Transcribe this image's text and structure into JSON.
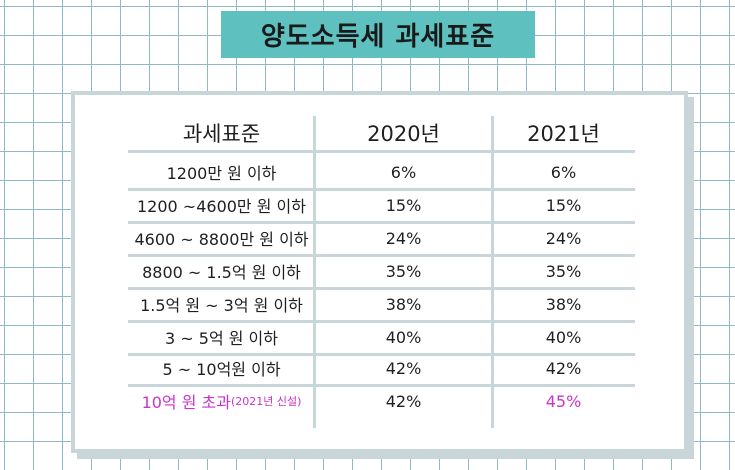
{
  "title": "양도소득세 과세표준",
  "table": {
    "headers": [
      "과세표준",
      "2020년",
      "2021년"
    ],
    "rows": [
      {
        "bracket": "1200만 원 이하",
        "y2020": "6%",
        "y2021": "6%"
      },
      {
        "bracket": "1200 ~4600만 원 이하",
        "y2020": "15%",
        "y2021": "15%"
      },
      {
        "bracket": "4600 ~ 8800만 원 이하",
        "y2020": "24%",
        "y2021": "24%"
      },
      {
        "bracket": "8800 ~ 1.5억 원 이하",
        "y2020": "35%",
        "y2021": "35%"
      },
      {
        "bracket": "1.5억 원 ~ 3억 원 이하",
        "y2020": "38%",
        "y2021": "38%"
      },
      {
        "bracket": "3 ~ 5억 원 이하",
        "y2020": "40%",
        "y2021": "40%"
      },
      {
        "bracket": "5 ~ 10억원 이하",
        "y2020": "42%",
        "y2021": "42%"
      },
      {
        "bracket": "10억 원 초과",
        "bracket_note": "(2021년 신설)",
        "y2020": "42%",
        "y2021": "45%"
      }
    ]
  },
  "colors": {
    "title_bg": "#5ec1bf",
    "grid": "#8fb9c6",
    "panel_border": "#c9d6d9",
    "highlight": "#cc33cc"
  }
}
